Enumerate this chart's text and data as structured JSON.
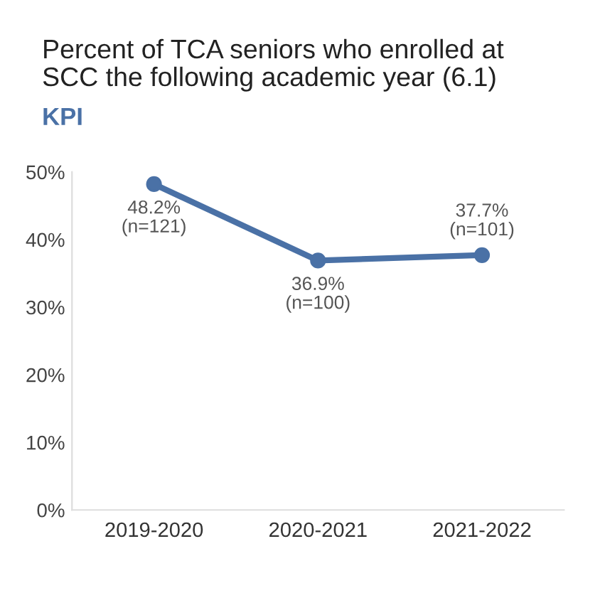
{
  "chart_data": {
    "type": "line",
    "title": "Percent of TCA seniors who enrolled at\nSCC the following academic year (6.1)",
    "subtitle": "KPI",
    "categories": [
      "2019-2020",
      "2020-2021",
      "2021-2022"
    ],
    "series": [
      {
        "color": "#4a71a6",
        "values": [
          48.2,
          36.9,
          37.7
        ],
        "value_labels": [
          "48.2%\n(n=121)",
          "36.9%\n(n=100)",
          "37.7%\n(n=101)"
        ]
      }
    ],
    "ylim": [
      0,
      50
    ],
    "yticks": [
      {
        "value": 0,
        "label": "0%"
      },
      {
        "value": 10,
        "label": "10%"
      },
      {
        "value": 20,
        "label": "20%"
      },
      {
        "value": 30,
        "label": "30%"
      },
      {
        "value": 40,
        "label": "40%"
      },
      {
        "value": 50,
        "label": "50%"
      }
    ],
    "grid": false,
    "legend": false,
    "marker": "circle",
    "line_style": "solid"
  }
}
